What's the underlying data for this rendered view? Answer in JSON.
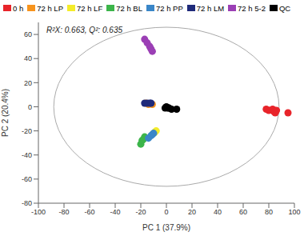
{
  "chart_data": {
    "type": "scatter",
    "annotations": [
      "R²X: 0.663, Q²: 0.635"
    ],
    "x_label": "PC 1 (37.9%)",
    "y_label": "PC 2 (20.4%)",
    "xlim": [
      -100,
      100
    ],
    "xticks": [
      -100,
      -80,
      -60,
      -40,
      -20,
      0,
      20,
      40,
      60,
      80,
      100
    ],
    "ylim": [
      -80,
      70
    ],
    "yticks": [
      -80,
      -60,
      -40,
      -20,
      0,
      20,
      40,
      60
    ],
    "grid": false,
    "legend": "top",
    "ellipse": {
      "center": [
        0,
        0
      ],
      "radii": [
        88,
        66
      ]
    },
    "series": [
      {
        "name": "0 h",
        "color": "#e8242a",
        "x": [
          78,
          80,
          83,
          84,
          85,
          86,
          95
        ],
        "values": [
          -2,
          -3,
          -2,
          -4,
          -5,
          -3,
          -5
        ]
      },
      {
        "name": "72 h LP",
        "color": "#f7941d",
        "x": [
          -16,
          -14,
          -11
        ],
        "values": [
          3,
          2,
          2
        ]
      },
      {
        "name": "72 h LF",
        "color": "#f4ec2a",
        "x": [
          -9,
          -8,
          -10
        ],
        "values": [
          -21,
          -20,
          -22
        ]
      },
      {
        "name": "72 h BL",
        "color": "#3cb54a",
        "x": [
          -20,
          -19,
          -18,
          -17
        ],
        "values": [
          -31,
          -28,
          -27,
          -25
        ]
      },
      {
        "name": "72 h PP",
        "color": "#3a86c8",
        "x": [
          -14,
          -12,
          -11,
          -10
        ],
        "values": [
          -26,
          -24,
          -23,
          -22
        ]
      },
      {
        "name": "72 h LM",
        "color": "#1f2a7a",
        "x": [
          -17,
          -15,
          -13,
          -12
        ],
        "values": [
          3,
          3,
          3,
          3
        ]
      },
      {
        "name": "72 h 5-2",
        "color": "#9b3fb5",
        "x": [
          -17,
          -15,
          -13,
          -12,
          -11
        ],
        "values": [
          56,
          53,
          50,
          48,
          46
        ]
      },
      {
        "name": "QC",
        "color": "#000000",
        "x": [
          -1,
          0,
          1,
          2,
          4,
          8
        ],
        "values": [
          -1,
          0,
          -1,
          -1,
          -2,
          -2
        ]
      }
    ]
  }
}
